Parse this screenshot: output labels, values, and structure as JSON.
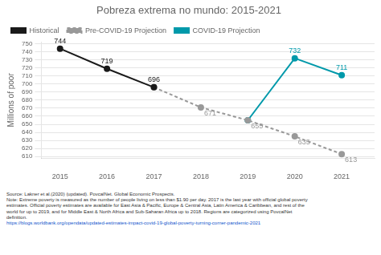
{
  "chart_data": {
    "type": "line",
    "title": "Pobreza extrema no mundo: 2015-2021",
    "ylabel": "Millions of poor",
    "series": [
      {
        "name": "Historical",
        "color": "#1a1a1a",
        "marker": "circle",
        "line_style": "solid",
        "x": [
          2015,
          2016,
          2017
        ],
        "values": [
          744,
          719,
          696
        ],
        "value_labels": [
          "744",
          "719",
          "696"
        ]
      },
      {
        "name": "Pre-COVID-19 Projection",
        "color": "#999999",
        "marker": "circle",
        "line_style": "dashed",
        "x": [
          2017,
          2018,
          2019,
          2020,
          2021
        ],
        "values": [
          696,
          671,
          655,
          635,
          613
        ],
        "value_labels": [
          null,
          "671",
          "655",
          "635",
          "613"
        ]
      },
      {
        "name": "COVID-19 Projection",
        "color": "#0099aa",
        "marker": "circle",
        "line_style": "solid",
        "x": [
          2019,
          2020,
          2021
        ],
        "values": [
          655,
          732,
          711
        ],
        "value_labels": [
          null,
          "732",
          "711"
        ]
      }
    ],
    "xlim": [
      2014.6,
      2021.7
    ],
    "xticks": [
      2015,
      2016,
      2017,
      2018,
      2019,
      2020,
      2021
    ],
    "ylim": [
      608,
      752
    ],
    "yticks": [
      610,
      620,
      630,
      640,
      650,
      660,
      670,
      680,
      690,
      700,
      710,
      720,
      730,
      740,
      750
    ],
    "grid": "y",
    "legend": "upper left",
    "data_labels": true,
    "notes": [
      "Source: Lakner et al.(2020) (updated). PovcalNet. Global Economic Prospects.",
      "Note: Extreme poverty is measured as the number of people living on less than $1.90 per day. 2017 is the last year with official global poverty",
      "estimates. Official poverty estimates are available for East Asia & Pacific, Europe & Central Asia, Latin America & Caribbean, and rest of the",
      "world for up to 2019, and for Middle East & North Africa and Sub-Saharan Africa up to 2018. Regions are categorized using PovcalNet",
      "definition.",
      "https://blogs.worldbank.org/opendata/updated-estimates-impact-covid-19-global-poverty-turning-corner-pandemic-2021"
    ]
  }
}
